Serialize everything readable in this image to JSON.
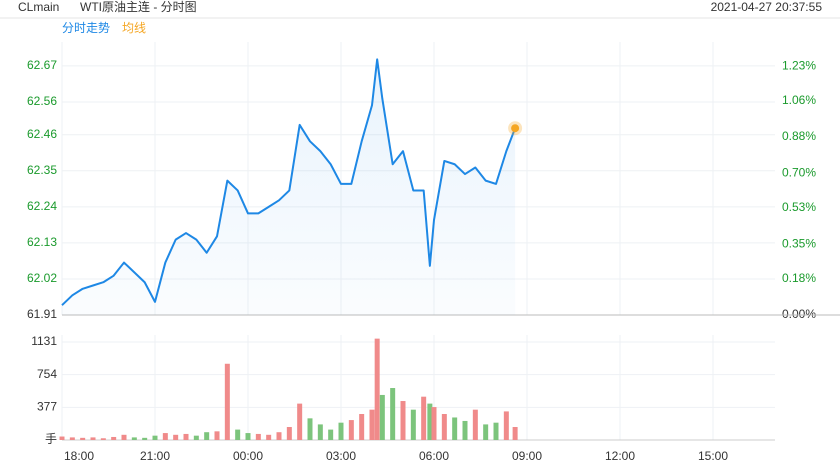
{
  "header": {
    "symbol": "CLmain",
    "name": "WTI原油主连 - 分时图",
    "time": "2021-04-27 20:37:55"
  },
  "chart_data": [
    {
      "type": "line",
      "x": [
        0,
        20,
        40,
        60,
        80,
        100,
        120,
        140,
        160,
        180,
        200,
        220,
        240,
        260,
        280,
        300,
        320,
        340,
        360,
        380,
        400,
        420,
        440,
        460,
        480,
        500,
        520,
        540,
        560,
        580,
        600,
        610,
        620,
        640,
        660,
        680,
        700,
        712,
        720,
        740,
        760,
        780,
        800,
        820,
        840,
        860,
        877
      ],
      "series": [
        {
          "name": "分时走势",
          "color": "#1e88e5",
          "values": [
            61.94,
            61.97,
            61.99,
            62.0,
            62.01,
            62.03,
            62.07,
            62.04,
            62.01,
            61.95,
            62.07,
            62.14,
            62.16,
            62.14,
            62.1,
            62.15,
            62.32,
            62.29,
            62.22,
            62.22,
            62.24,
            62.26,
            62.29,
            62.49,
            62.44,
            62.41,
            62.37,
            62.31,
            62.31,
            62.44,
            62.55,
            62.69,
            62.57,
            62.37,
            62.41,
            62.29,
            62.29,
            62.06,
            62.2,
            62.38,
            62.37,
            62.34,
            62.36,
            62.32,
            62.31,
            62.41,
            62.48
          ]
        },
        {
          "name": "均线",
          "color": "#f5a623",
          "values": [
            null,
            null,
            null,
            null,
            null,
            null,
            null,
            null,
            null,
            null,
            null,
            null,
            null,
            null,
            null,
            null,
            null,
            null,
            null,
            null,
            null,
            null,
            null,
            null,
            null,
            null,
            null,
            null,
            null,
            null,
            null,
            null,
            null,
            null,
            null,
            null,
            null,
            null,
            null,
            null,
            null,
            null,
            null,
            null,
            null,
            null,
            62.48
          ]
        }
      ],
      "xlim": [
        0,
        1380
      ],
      "ylim": [
        61.91,
        62.743
      ],
      "yticks": [
        61.91,
        62.02,
        62.13,
        62.24,
        62.35,
        62.46,
        62.56,
        62.67
      ],
      "y2lim": [
        0,
        1.35
      ],
      "y2ticks": [
        {
          "value": 0,
          "label": "0.00%"
        },
        {
          "value": 0.18,
          "label": "0.18%"
        },
        {
          "value": 0.35,
          "label": "0.35%"
        },
        {
          "value": 0.53,
          "label": "0.53%"
        },
        {
          "value": 0.7,
          "label": "0.70%"
        },
        {
          "value": 0.88,
          "label": "0.88%"
        },
        {
          "value": 1.06,
          "label": "1.06%"
        },
        {
          "value": 1.23,
          "label": "1.23%"
        }
      ],
      "grid": true
    },
    {
      "type": "bar",
      "x": [
        0,
        20,
        40,
        60,
        80,
        100,
        120,
        140,
        160,
        180,
        200,
        220,
        240,
        260,
        280,
        300,
        320,
        340,
        360,
        380,
        400,
        420,
        440,
        460,
        480,
        500,
        520,
        540,
        560,
        580,
        600,
        610,
        620,
        640,
        660,
        680,
        700,
        712,
        720,
        740,
        760,
        780,
        800,
        820,
        840,
        860,
        877
      ],
      "values": [
        40,
        30,
        25,
        30,
        20,
        35,
        60,
        30,
        25,
        50,
        80,
        60,
        70,
        50,
        90,
        100,
        880,
        120,
        80,
        70,
        60,
        90,
        150,
        420,
        250,
        180,
        120,
        200,
        230,
        300,
        350,
        1170,
        520,
        600,
        450,
        350,
        500,
        420,
        380,
        300,
        260,
        220,
        350,
        180,
        200,
        330,
        150
      ],
      "up_color": "#f08a8a",
      "down_color": "#7cc47c",
      "xlim": [
        0,
        1380
      ],
      "xticks": [
        {
          "value": 0,
          "label": "18:00"
        },
        {
          "value": 180,
          "label": "21:00"
        },
        {
          "value": 360,
          "label": "00:00"
        },
        {
          "value": 540,
          "label": "03:00"
        },
        {
          "value": 720,
          "label": "06:00"
        },
        {
          "value": 900,
          "label": "09:00"
        },
        {
          "value": 1080,
          "label": "12:00"
        },
        {
          "value": 1260,
          "label": "15:00"
        }
      ],
      "ylim": [
        0,
        1212
      ],
      "yticks": [
        {
          "value": 0,
          "label": "手"
        },
        377,
        754,
        1131
      ],
      "grid": true
    }
  ]
}
